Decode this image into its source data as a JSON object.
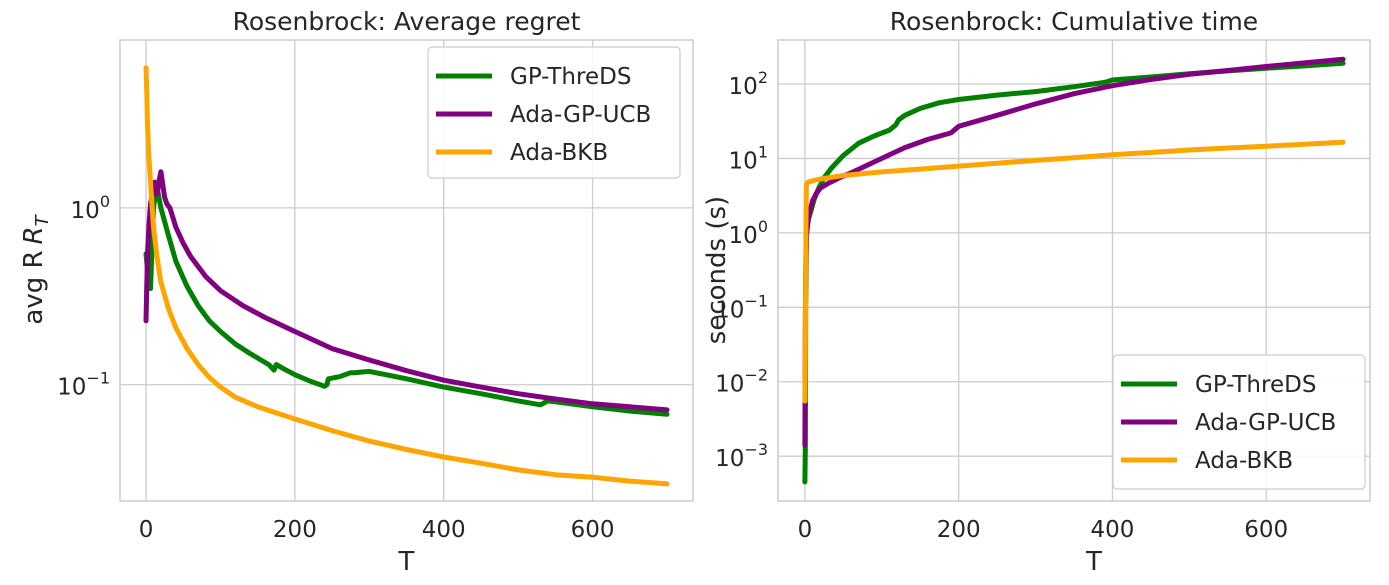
{
  "chart_data": [
    {
      "type": "line",
      "title": "Rosenbrock: Average regret",
      "xlabel": "T",
      "ylabel": "avg R",
      "ylabel_sub": "T",
      "yscale": "log",
      "xlim": [
        -35,
        735
      ],
      "ylim": [
        0.022,
        8.9
      ],
      "grid": true,
      "legend_position": "top-right",
      "xticks": [
        0,
        200,
        400,
        600
      ],
      "xtick_labels": [
        "0",
        "200",
        "400",
        "600"
      ],
      "yticks": [
        {
          "value": 1,
          "base": "10",
          "exp": "0"
        },
        {
          "value": 0.1,
          "base": "10",
          "exp": "−1"
        }
      ],
      "series": [
        {
          "name": "GP-ThreDS",
          "color": "#008000",
          "x": [
            0,
            3,
            6,
            10,
            14,
            20,
            30,
            40,
            55,
            70,
            85,
            100,
            120,
            140,
            165,
            172,
            175,
            185,
            200,
            220,
            240,
            243,
            245,
            260,
            275,
            280,
            290,
            300,
            350,
            400,
            450,
            500,
            530,
            540,
            560,
            600,
            650,
            700
          ],
          "y": [
            0.55,
            0.4,
            0.35,
            1.0,
            1.35,
            1.0,
            0.7,
            0.5,
            0.36,
            0.28,
            0.23,
            0.2,
            0.17,
            0.15,
            0.13,
            0.121,
            0.13,
            0.123,
            0.114,
            0.105,
            0.098,
            0.1,
            0.108,
            0.111,
            0.117,
            0.117,
            0.118,
            0.119,
            0.108,
            0.097,
            0.089,
            0.081,
            0.077,
            0.081,
            0.079,
            0.075,
            0.071,
            0.068
          ]
        },
        {
          "name": "Ada-GP-UCB",
          "color": "#800080",
          "x": [
            0,
            2,
            4,
            6,
            9,
            12,
            15,
            18,
            20,
            22,
            25,
            28,
            32,
            40,
            50,
            60,
            80,
            100,
            130,
            160,
            200,
            250,
            300,
            350,
            400,
            450,
            500,
            550,
            600,
            650,
            700
          ],
          "y": [
            0.23,
            0.55,
            0.8,
            1.05,
            1.25,
            1.4,
            1.2,
            1.45,
            1.6,
            1.4,
            1.15,
            1.05,
            1.0,
            0.78,
            0.63,
            0.53,
            0.41,
            0.34,
            0.28,
            0.24,
            0.2,
            0.16,
            0.138,
            0.12,
            0.106,
            0.097,
            0.089,
            0.083,
            0.078,
            0.075,
            0.072
          ]
        },
        {
          "name": "Ada-BKB",
          "color": "#ffa500",
          "x": [
            0,
            1,
            2,
            4,
            7,
            10,
            15,
            20,
            30,
            40,
            55,
            70,
            85,
            100,
            120,
            150,
            200,
            250,
            300,
            350,
            400,
            450,
            500,
            550,
            600,
            650,
            700
          ],
          "y": [
            6.2,
            4.5,
            3.0,
            1.9,
            1.2,
            0.78,
            0.52,
            0.38,
            0.27,
            0.21,
            0.16,
            0.13,
            0.11,
            0.097,
            0.085,
            0.075,
            0.064,
            0.055,
            0.048,
            0.043,
            0.039,
            0.036,
            0.033,
            0.031,
            0.03,
            0.0285,
            0.0275
          ]
        }
      ]
    },
    {
      "type": "line",
      "title": "Rosenbrock: Cumulative time",
      "xlabel": "T",
      "ylabel": "seconds (s)",
      "yscale": "log",
      "xlim": [
        -35,
        735
      ],
      "ylim": [
        0.00025,
        390
      ],
      "grid": true,
      "legend_position": "bottom-right",
      "xticks": [
        0,
        200,
        400,
        600
      ],
      "xtick_labels": [
        "0",
        "200",
        "400",
        "600"
      ],
      "yticks": [
        {
          "value": 100,
          "base": "10",
          "exp": "2"
        },
        {
          "value": 10,
          "base": "10",
          "exp": "1"
        },
        {
          "value": 1,
          "base": "10",
          "exp": "0"
        },
        {
          "value": 0.1,
          "base": "10",
          "exp": "−1"
        },
        {
          "value": 0.01,
          "base": "10",
          "exp": "−2"
        },
        {
          "value": 0.001,
          "base": "10",
          "exp": "−3"
        }
      ],
      "series": [
        {
          "name": "GP-ThreDS",
          "color": "#008000",
          "x": [
            0,
            0.5,
            1,
            2,
            3,
            5,
            8,
            12,
            18,
            25,
            35,
            50,
            70,
            90,
            110,
            118,
            122,
            130,
            150,
            175,
            200,
            250,
            300,
            350,
            390,
            400,
            450,
            500,
            550,
            600,
            650,
            700
          ],
          "y": [
            0.00045,
            0.0012,
            0.1,
            0.8,
            1.3,
            1.6,
            2.0,
            2.8,
            4.0,
            5.5,
            7.5,
            11,
            16,
            20,
            24,
            28,
            33,
            38,
            47,
            56,
            62,
            71,
            79,
            92,
            105,
            113,
            124,
            137,
            150,
            163,
            175,
            190
          ]
        },
        {
          "name": "Ada-GP-UCB",
          "color": "#800080",
          "x": [
            0,
            0.5,
            1,
            2,
            4,
            6,
            10,
            15,
            20,
            30,
            40,
            50,
            60,
            80,
            100,
            130,
            160,
            190,
            200,
            250,
            300,
            350,
            400,
            450,
            500,
            550,
            600,
            650,
            700
          ],
          "y": [
            0.0014,
            0.05,
            0.3,
            0.9,
            1.4,
            1.9,
            2.7,
            3.4,
            4.0,
            4.6,
            5.2,
            5.8,
            6.4,
            8.0,
            10,
            14,
            18,
            22,
            27,
            38,
            54,
            74,
            95,
            115,
            135,
            152,
            172,
            192,
            215
          ]
        },
        {
          "name": "Ada-BKB",
          "color": "#ffa500",
          "x": [
            0,
            0.5,
            1,
            1.5,
            2,
            4,
            10,
            20,
            30,
            50,
            100,
            150,
            200,
            250,
            300,
            350,
            400,
            450,
            500,
            550,
            600,
            650,
            700
          ],
          "y": [
            0.0055,
            0.02,
            0.3,
            2.0,
            4.5,
            4.8,
            5.0,
            5.3,
            5.5,
            5.9,
            6.6,
            7.2,
            7.9,
            8.6,
            9.4,
            10.2,
            11.2,
            12.0,
            13.0,
            13.8,
            14.6,
            15.5,
            16.5
          ]
        }
      ]
    }
  ]
}
